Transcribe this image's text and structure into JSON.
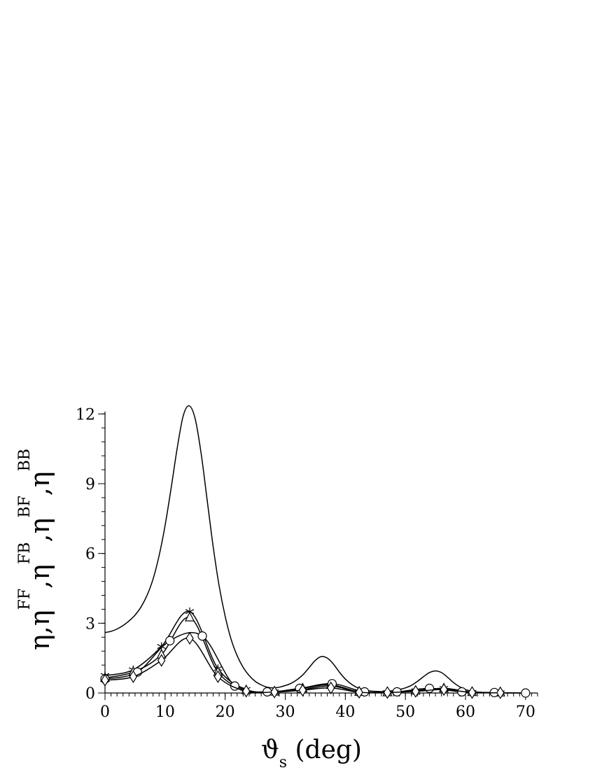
{
  "chart_data": {
    "type": "line",
    "x_label_parts": [
      {
        "text": "ϑ",
        "sub": false
      },
      {
        "text": "s",
        "sub": true
      },
      {
        "text": " (deg)",
        "sub": false
      }
    ],
    "y_label_parts": [
      {
        "text": "η,η",
        "sup": false
      },
      {
        "text": "FF",
        "sup": true
      },
      {
        "text": ",η",
        "sup": false
      },
      {
        "text": "FB",
        "sup": true
      },
      {
        "text": ",η",
        "sup": false
      },
      {
        "text": "BF",
        "sup": true
      },
      {
        "text": ",η",
        "sup": false
      },
      {
        "text": "BB",
        "sup": true
      }
    ],
    "xlim": [
      0,
      72
    ],
    "ylim": [
      0,
      12.1
    ],
    "xticks": [
      0,
      10,
      20,
      30,
      40,
      50,
      60,
      70
    ],
    "yticks": [
      0,
      3,
      6,
      9,
      12
    ],
    "xminor": 1,
    "yminor": 0.6,
    "color": "#000000",
    "series": [
      {
        "marker": "none",
        "x": [
          0,
          1,
          2,
          3,
          4,
          5,
          6,
          7,
          8,
          9,
          10,
          11,
          12,
          13,
          14,
          15,
          16,
          17,
          18,
          19,
          20,
          21,
          22,
          23,
          24,
          25,
          26,
          27,
          28,
          29,
          30,
          31,
          32,
          33,
          34,
          35,
          36,
          37,
          38,
          39,
          40,
          41,
          42,
          43,
          44,
          45,
          46,
          47,
          48,
          49,
          50,
          51,
          52,
          53,
          54,
          55,
          56,
          57,
          58,
          59,
          60,
          61,
          62,
          63,
          64,
          65,
          66,
          67,
          68,
          69,
          70
        ],
        "values": [
          2.6,
          2.65,
          2.75,
          2.9,
          3.1,
          3.35,
          3.7,
          4.2,
          4.9,
          5.9,
          7.2,
          8.8,
          10.5,
          11.9,
          12.35,
          11.8,
          10.3,
          8.3,
          6.3,
          4.6,
          3.3,
          2.3,
          1.6,
          1.1,
          0.75,
          0.5,
          0.35,
          0.25,
          0.22,
          0.25,
          0.32,
          0.42,
          0.58,
          0.8,
          1.1,
          1.4,
          1.57,
          1.5,
          1.25,
          0.9,
          0.6,
          0.38,
          0.23,
          0.14,
          0.09,
          0.07,
          0.06,
          0.07,
          0.1,
          0.15,
          0.22,
          0.33,
          0.5,
          0.7,
          0.88,
          0.95,
          0.88,
          0.68,
          0.45,
          0.27,
          0.15,
          0.08,
          0.04,
          0.02,
          0.01,
          0,
          0,
          0,
          0,
          0,
          0
        ]
      },
      {
        "marker": "star",
        "x": [
          0,
          4.7,
          9.4,
          14.1,
          18.8,
          23.5,
          28.2,
          32.9,
          37.6,
          42.3,
          47,
          51.7,
          56.4,
          61.1,
          65.8
        ],
        "values": [
          0.75,
          1.0,
          2.0,
          3.5,
          1.05,
          0.15,
          0.05,
          0.15,
          0.3,
          0.05,
          0.02,
          0.1,
          0.2,
          0.03,
          0.01
        ]
      },
      {
        "marker": "triangle",
        "x": [
          0,
          4.7,
          9.4,
          14.1,
          18.8,
          23.5,
          28.2,
          32.9,
          37.6,
          42.3,
          47,
          51.7,
          56.4,
          61.1,
          65.8
        ],
        "values": [
          0.65,
          0.9,
          1.65,
          3.25,
          0.9,
          0.12,
          0.06,
          0.2,
          0.35,
          0.05,
          0.03,
          0.1,
          0.2,
          0.04,
          0.02
        ]
      },
      {
        "marker": "circle",
        "x": [
          0,
          5.4,
          10.8,
          16.2,
          21.6,
          27,
          32.4,
          37.8,
          43.2,
          48.6,
          54,
          59.4,
          64.8,
          70
        ],
        "values": [
          0.6,
          0.9,
          2.25,
          2.45,
          0.3,
          0.05,
          0.2,
          0.4,
          0.05,
          0.05,
          0.2,
          0.05,
          0.02,
          0
        ]
      },
      {
        "marker": "diamond",
        "x": [
          0,
          4.7,
          9.4,
          14.1,
          18.8,
          23.5,
          28.2,
          32.9,
          37.6,
          42.3,
          47,
          51.7,
          56.4,
          61.1,
          65.8
        ],
        "values": [
          0.55,
          0.7,
          1.4,
          2.35,
          0.7,
          0.08,
          0.04,
          0.12,
          0.22,
          0.03,
          0.02,
          0.07,
          0.15,
          0.02,
          0.01
        ]
      }
    ]
  }
}
